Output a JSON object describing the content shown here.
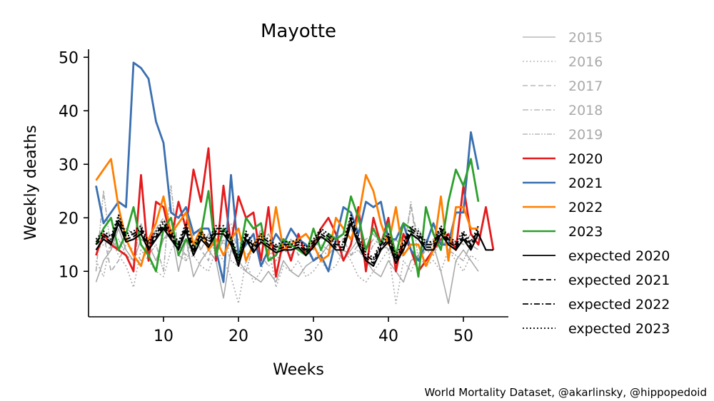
{
  "chart_data": {
    "type": "line",
    "title": "Mayotte",
    "xlabel": "Weeks",
    "ylabel": "Weekly deaths",
    "xlim": [
      0,
      56
    ],
    "ylim": [
      1.5,
      51.5
    ],
    "xticks": [
      10,
      20,
      30,
      40,
      50
    ],
    "yticks": [
      10,
      20,
      30,
      40,
      50
    ],
    "grid": false,
    "legend_position": "right, outside plot",
    "credit": "World Mortality Dataset, @akarlinsky, @hippopedoid",
    "series": [
      {
        "name": "2015",
        "color": "#aaaaaa",
        "dash": "solid",
        "width": 1.6,
        "values": [
          8,
          12,
          14,
          18,
          14,
          12,
          16,
          15,
          12,
          16,
          18,
          10,
          16,
          9,
          12,
          14,
          12,
          5,
          14,
          12,
          10,
          9,
          8,
          10,
          8,
          12,
          10,
          9,
          11,
          12,
          13,
          15,
          14,
          12,
          14,
          16,
          12,
          10,
          9,
          12,
          10,
          8,
          12,
          13,
          16,
          15,
          10,
          4,
          12,
          14,
          12,
          10
        ]
      },
      {
        "name": "2016",
        "color": "#aaaaaa",
        "dash": "dotted",
        "width": 1.6,
        "values": [
          12,
          9,
          16,
          13,
          11,
          7,
          14,
          12,
          10,
          9,
          14,
          16,
          12,
          13,
          11,
          10,
          14,
          12,
          9,
          4,
          12,
          8,
          10,
          15,
          7,
          11,
          10,
          12,
          9,
          10,
          12,
          10,
          11,
          14,
          12,
          9,
          8,
          10,
          12,
          14,
          4,
          12,
          10,
          13,
          11,
          12,
          10,
          14,
          12,
          10,
          13,
          12
        ]
      },
      {
        "name": "2017",
        "color": "#aaaaaa",
        "dash": "dashed",
        "width": 1.6,
        "values": [
          13,
          17,
          10,
          12,
          15,
          14,
          12,
          14,
          18,
          20,
          16,
          15,
          13,
          17,
          14,
          12,
          18,
          15,
          14,
          16,
          13,
          14,
          18,
          12,
          15,
          14,
          16,
          13,
          15,
          14,
          16,
          17,
          15,
          14,
          13,
          15,
          14,
          16,
          15,
          17,
          13,
          14,
          22,
          16,
          15,
          14,
          17,
          15,
          14,
          16,
          15,
          14
        ]
      },
      {
        "name": "2018",
        "color": "#aaaaaa",
        "dash": "dashdot",
        "width": 1.6,
        "values": [
          14,
          15,
          16,
          14,
          18,
          17,
          16,
          15,
          18,
          16,
          17,
          15,
          16,
          13,
          18,
          15,
          14,
          17,
          19,
          13,
          16,
          14,
          15,
          17,
          14,
          16,
          15,
          14,
          13,
          16,
          15,
          14,
          17,
          16,
          18,
          15,
          16,
          17,
          15,
          14,
          16,
          14,
          17,
          18,
          15,
          16,
          17,
          14,
          16,
          15,
          17,
          16
        ]
      },
      {
        "name": "2019",
        "color": "#aaaaaa",
        "dash": "dashdotdot",
        "width": 1.6,
        "values": [
          10,
          25,
          14,
          16,
          13,
          12,
          19,
          13,
          15,
          10,
          26,
          13,
          12,
          15,
          14,
          17,
          13,
          16,
          12,
          11,
          10,
          15,
          13,
          11,
          12,
          14,
          13,
          15,
          14,
          12,
          14,
          13,
          15,
          16,
          13,
          14,
          12,
          15,
          16,
          14,
          12,
          13,
          23,
          12,
          14,
          13,
          16,
          14,
          13,
          12,
          15,
          17
        ]
      },
      {
        "name": "2020",
        "color": "#e41a1c",
        "dash": "solid",
        "width": 2.8,
        "values": [
          13,
          17,
          15,
          14,
          13,
          10,
          28,
          12,
          23,
          22,
          16,
          23,
          18,
          29,
          23,
          33,
          12,
          26,
          15,
          24,
          20,
          21,
          12,
          22,
          9,
          16,
          12,
          17,
          13,
          15,
          18,
          20,
          17,
          12,
          15,
          22,
          10,
          20,
          15,
          20,
          10,
          17,
          14,
          10,
          12,
          14,
          16,
          17,
          14,
          26,
          17,
          15,
          22,
          14
        ]
      },
      {
        "name": "2021",
        "color": "#3a6fb0",
        "dash": "solid",
        "width": 2.8,
        "values": [
          26,
          19,
          21,
          23,
          22,
          49,
          48,
          46,
          38,
          34,
          21,
          20,
          22,
          17,
          18,
          18,
          14,
          8,
          28,
          13,
          15,
          17,
          11,
          14,
          17,
          15,
          18,
          16,
          15,
          12,
          13,
          10,
          16,
          22,
          21,
          17,
          23,
          22,
          23,
          16,
          16,
          19,
          14,
          12,
          15,
          19,
          15,
          15,
          21,
          21,
          36,
          29
        ]
      },
      {
        "name": "2022",
        "color": "#ff7f00",
        "dash": "solid",
        "width": 2.8,
        "values": [
          27,
          29,
          31,
          22,
          16,
          13,
          11,
          16,
          19,
          24,
          17,
          19,
          21,
          15,
          18,
          14,
          16,
          13,
          16,
          18,
          12,
          15,
          17,
          13,
          22,
          14,
          15,
          16,
          17,
          15,
          12,
          13,
          20,
          18,
          16,
          20,
          28,
          25,
          19,
          15,
          22,
          13,
          15,
          15,
          11,
          14,
          24,
          12,
          22,
          22,
          18,
          18
        ]
      },
      {
        "name": "2023",
        "color": "#2ca02c",
        "dash": "solid",
        "width": 2.8,
        "values": [
          15,
          18,
          20,
          14,
          17,
          22,
          15,
          13,
          10,
          18,
          20,
          13,
          16,
          14,
          17,
          25,
          13,
          18,
          16,
          12,
          20,
          18,
          19,
          12,
          13,
          16,
          15,
          14,
          13,
          18,
          14,
          17,
          16,
          17,
          24,
          20,
          14,
          18,
          15,
          19,
          13,
          19,
          18,
          9,
          22,
          17,
          14,
          23,
          29,
          26,
          31,
          23
        ]
      },
      {
        "name": "expected 2020",
        "color": "#000000",
        "dash": "solid",
        "width": 2.2,
        "values": [
          14,
          16,
          15,
          19,
          15.5,
          16,
          17,
          14,
          16,
          18,
          16,
          14,
          17.5,
          13,
          16,
          14.5,
          17,
          17,
          15,
          11,
          16,
          13.5,
          15.5,
          14.5,
          13.5,
          14,
          14,
          14.5,
          13,
          14.5,
          16.5,
          15.5,
          14,
          14,
          19,
          15,
          12,
          11,
          14,
          15.5,
          11.5,
          14,
          17,
          16,
          14,
          14,
          17,
          15,
          14,
          16,
          14,
          17,
          14,
          14
        ]
      },
      {
        "name": "expected 2021",
        "color": "#000000",
        "dash": "dashed",
        "width": 2.2,
        "values": [
          15,
          16.5,
          15.5,
          19.5,
          16,
          16.5,
          17.5,
          14.5,
          16.5,
          18.5,
          16.5,
          14.5,
          18,
          13.5,
          16.5,
          15,
          17.5,
          17.5,
          15.5,
          11.5,
          16.5,
          14,
          16,
          15,
          14,
          14.5,
          14.5,
          15,
          13.5,
          15,
          17,
          16,
          14.5,
          14.5,
          19.5,
          15.5,
          12.5,
          11.5,
          14.5,
          16,
          12,
          14.5,
          17.5,
          16.5,
          14.5,
          14.5,
          17.5,
          15.5,
          14.5,
          16.5,
          14.5,
          17.5
        ]
      },
      {
        "name": "expected 2022",
        "color": "#000000",
        "dash": "dashdot",
        "width": 2.2,
        "values": [
          15.5,
          17,
          16,
          20,
          16.5,
          17,
          18,
          15,
          17,
          19,
          17,
          15,
          18.5,
          14,
          17,
          15.5,
          18,
          18,
          16,
          12,
          17,
          14.5,
          16.5,
          15.5,
          14.5,
          15,
          15,
          15.5,
          14,
          15.5,
          17.5,
          16.5,
          15,
          15,
          20,
          16,
          13,
          12,
          15,
          16.5,
          12.5,
          15,
          18,
          17,
          15,
          15,
          18,
          16,
          15,
          17,
          15,
          18
        ]
      },
      {
        "name": "expected 2023",
        "color": "#000000",
        "dash": "dotted",
        "width": 2.2,
        "values": [
          16,
          17.5,
          16.5,
          20.5,
          17,
          17.5,
          18.5,
          15.5,
          17.5,
          19.5,
          17.5,
          15.5,
          19,
          14.5,
          17.5,
          16,
          18.5,
          18.5,
          16.5,
          12.5,
          17.5,
          15,
          17,
          16,
          15,
          15.5,
          15.5,
          16,
          14.5,
          16,
          18,
          17,
          15.5,
          15.5,
          20.5,
          16.5,
          13.5,
          12.5,
          15.5,
          17,
          13,
          15.5,
          18.5,
          17.5,
          15.5,
          15.5,
          18.5,
          16.5,
          15.5,
          17.5,
          15.5,
          18.5
        ]
      }
    ]
  }
}
